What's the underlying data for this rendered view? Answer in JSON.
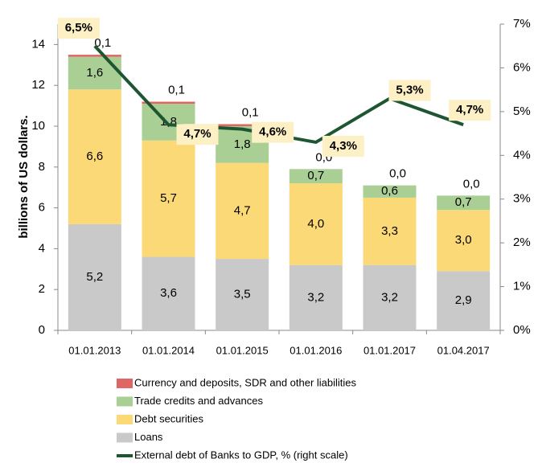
{
  "chart_data": {
    "type": "bar",
    "y_axis_label": "billions of US dollars.",
    "categories": [
      "01.01.2013",
      "01.01.2014",
      "01.01.2015",
      "01.01.2016",
      "01.01.2017",
      "01.04.2017"
    ],
    "series": [
      {
        "name": "Loans",
        "color": "#c9c9c9",
        "values": [
          5.2,
          3.6,
          3.5,
          3.2,
          3.2,
          2.9
        ],
        "value_labels": [
          "5,2",
          "3,6",
          "3,5",
          "3,2",
          "3,2",
          "2,9"
        ]
      },
      {
        "name": "Debt securities",
        "color": "#fcd977",
        "values": [
          6.6,
          5.7,
          4.7,
          4.0,
          3.3,
          3.0
        ],
        "value_labels": [
          "6,6",
          "5,7",
          "4,7",
          "4,0",
          "3,3",
          "3,0"
        ]
      },
      {
        "name": "Trade credits and advances",
        "color": "#a9cf94",
        "values": [
          1.6,
          1.8,
          1.8,
          0.7,
          0.6,
          0.7
        ],
        "value_labels": [
          "1,6",
          "1,8",
          "1,8",
          "0,7",
          "0,6",
          "0,7"
        ]
      },
      {
        "name": "Currency and deposits, SDR and other liabilities",
        "color": "#e06666",
        "values": [
          0.1,
          0.1,
          0.1,
          0.0,
          0.0,
          0.0
        ],
        "value_labels": [
          "0,1",
          "0,1",
          "0,1",
          "0,0",
          "0,0",
          "0,0"
        ]
      },
      {
        "name": "External debt of Banks to GDP, % (right scale)",
        "color": "#1e5631",
        "type": "line",
        "axis": "y2",
        "values": [
          6.5,
          4.7,
          4.6,
          4.3,
          5.3,
          4.7
        ],
        "value_labels": [
          "6,5%",
          "4,7%",
          "4,6%",
          "4,3%",
          "5,3%",
          "4,7%"
        ]
      }
    ],
    "ylim": [
      0,
      15
    ],
    "yticks": [
      0,
      2,
      4,
      6,
      8,
      10,
      12,
      14
    ],
    "y2lim": [
      0,
      7
    ],
    "y2ticks": [
      {
        "value": 0,
        "label": "0%"
      },
      {
        "value": 1,
        "label": "1%"
      },
      {
        "value": 2,
        "label": "2%"
      },
      {
        "value": 3,
        "label": "3%"
      },
      {
        "value": 4,
        "label": "4%"
      },
      {
        "value": 5,
        "label": "5%"
      },
      {
        "value": 6,
        "label": "6%"
      },
      {
        "value": 7,
        "label": "7%"
      }
    ],
    "legend": "bottom"
  }
}
